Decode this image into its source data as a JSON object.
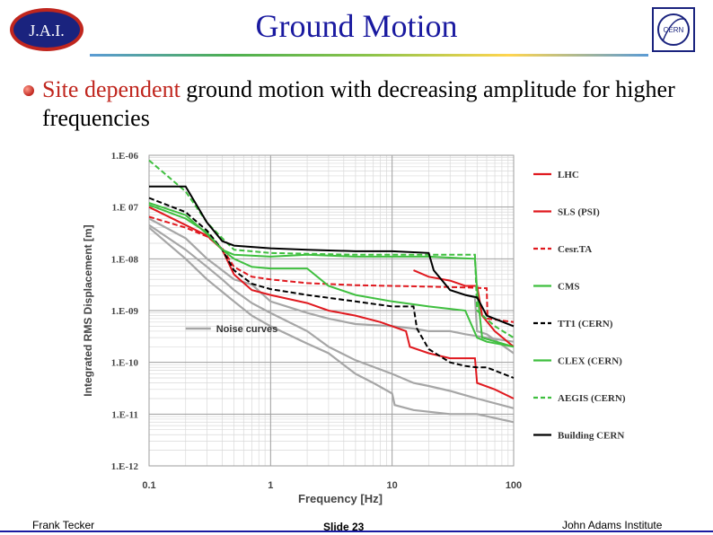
{
  "slide": {
    "title": "Ground Motion",
    "logo_left_text": "J.A.I.",
    "logo_right_text": "CERN",
    "bullet_part1": "Site dependent",
    "bullet_part2": " ground motion with decreasing amplitude for higher frequencies"
  },
  "footer": {
    "left": "Frank Tecker",
    "center": "Slide 23",
    "right": "John Adams Institute"
  },
  "colors": {
    "title": "#1a1aa0",
    "accent": "#c0261e"
  },
  "chart_data": {
    "type": "line",
    "xlabel": "Frequency [Hz]",
    "ylabel": "Integrated RMS Displacement [m]",
    "x_scale": "log",
    "y_scale": "log",
    "xlim": [
      0.1,
      100
    ],
    "ylim": [
      1e-12,
      1e-06
    ],
    "grid": true,
    "legend_position": "right",
    "xticks": [
      {
        "value": 0.1,
        "label": "0.1"
      },
      {
        "value": 1,
        "label": "1"
      },
      {
        "value": 10,
        "label": "10"
      },
      {
        "value": 100,
        "label": "100"
      }
    ],
    "yticks": [
      {
        "value": 1e-06,
        "label": "1.E-06"
      },
      {
        "value": 1e-07,
        "label": "1.E 07"
      },
      {
        "value": 1e-08,
        "label": "1.E-08"
      },
      {
        "value": 1e-09,
        "label": "1.E-09"
      },
      {
        "value": 1e-10,
        "label": "1.E-10"
      },
      {
        "value": 1e-11,
        "label": "1.E-11"
      },
      {
        "value": 1e-12,
        "label": "1.E-12"
      }
    ],
    "annotation": {
      "text": "Noise curves",
      "x": 0.2,
      "y": 4.5e-10
    },
    "series": [
      {
        "name": "LHC",
        "color": "#e0191f",
        "dash": "solid",
        "points": [
          [
            0.1,
            1e-07
          ],
          [
            0.2,
            4.5e-08
          ],
          [
            0.3,
            2.8e-08
          ],
          [
            0.4,
            1.5e-08
          ],
          [
            0.5,
            5e-09
          ],
          [
            0.7,
            2.5e-09
          ],
          [
            1,
            2e-09
          ],
          [
            2,
            1.4e-09
          ],
          [
            3,
            1e-09
          ],
          [
            5,
            8e-10
          ],
          [
            8,
            6e-10
          ],
          [
            10,
            5e-10
          ],
          [
            13,
            4e-10
          ],
          [
            14,
            2e-10
          ],
          [
            20,
            1.5e-10
          ],
          [
            30,
            1.2e-10
          ],
          [
            48,
            1.2e-10
          ],
          [
            50,
            4e-11
          ],
          [
            70,
            3e-11
          ],
          [
            100,
            2e-11
          ]
        ]
      },
      {
        "name": "SLS (PSI)",
        "color": "#e0191f",
        "dash": "solid",
        "points": [
          [
            15,
            6e-09
          ],
          [
            20,
            4.5e-09
          ],
          [
            30,
            3.8e-09
          ],
          [
            40,
            3e-09
          ],
          [
            50,
            3e-09
          ],
          [
            55,
            8e-10
          ],
          [
            70,
            4e-10
          ],
          [
            100,
            2e-10
          ]
        ]
      },
      {
        "name": "Cesr.TA",
        "color": "#e0191f",
        "dash": "dash",
        "points": [
          [
            0.1,
            6.5e-08
          ],
          [
            0.2,
            4e-08
          ],
          [
            0.3,
            2.7e-08
          ],
          [
            0.4,
            1.6e-08
          ],
          [
            0.5,
            7e-09
          ],
          [
            0.7,
            4.5e-09
          ],
          [
            1,
            4e-09
          ],
          [
            2,
            3.4e-09
          ],
          [
            5,
            3.1e-09
          ],
          [
            10,
            3e-09
          ],
          [
            20,
            2.9e-09
          ],
          [
            40,
            2.8e-09
          ],
          [
            60,
            2.7e-09
          ],
          [
            61,
            7e-10
          ],
          [
            100,
            6e-10
          ]
        ]
      },
      {
        "name": "CMS",
        "color": "#3fbf3f",
        "dash": "solid",
        "points": [
          [
            0.1,
            1.1e-07
          ],
          [
            0.2,
            6e-08
          ],
          [
            0.3,
            3.2e-08
          ],
          [
            0.4,
            1.5e-08
          ],
          [
            0.5,
            1e-08
          ],
          [
            0.7,
            7e-09
          ],
          [
            1,
            6.5e-09
          ],
          [
            2,
            6.5e-09
          ],
          [
            3,
            3e-09
          ],
          [
            5,
            2e-09
          ],
          [
            10,
            1.5e-09
          ],
          [
            20,
            1.2e-09
          ],
          [
            40,
            1e-09
          ],
          [
            50,
            3e-10
          ],
          [
            60,
            2.5e-10
          ],
          [
            100,
            2e-10
          ]
        ]
      },
      {
        "name": "TT1 (CERN)",
        "color": "#000000",
        "dash": "dash",
        "points": [
          [
            0.1,
            1.5e-07
          ],
          [
            0.2,
            8e-08
          ],
          [
            0.3,
            3.5e-08
          ],
          [
            0.4,
            1.5e-08
          ],
          [
            0.5,
            6e-09
          ],
          [
            0.7,
            3.3e-09
          ],
          [
            1,
            2.6e-09
          ],
          [
            2,
            2e-09
          ],
          [
            5,
            1.5e-09
          ],
          [
            10,
            1.2e-09
          ],
          [
            15,
            1.2e-09
          ],
          [
            16,
            4.5e-10
          ],
          [
            20,
            1.8e-10
          ],
          [
            30,
            1e-10
          ],
          [
            40,
            8.5e-11
          ],
          [
            50,
            8e-11
          ],
          [
            60,
            8e-11
          ],
          [
            100,
            5e-11
          ]
        ]
      },
      {
        "name": "CLEX (CERN)",
        "color": "#3fbf3f",
        "dash": "solid",
        "points": [
          [
            0.1,
            1.2e-07
          ],
          [
            0.2,
            7e-08
          ],
          [
            0.3,
            3e-08
          ],
          [
            0.4,
            1.5e-08
          ],
          [
            0.5,
            1.2e-08
          ],
          [
            1,
            1.1e-08
          ],
          [
            2,
            1.2e-08
          ],
          [
            5,
            1.1e-08
          ],
          [
            10,
            1.1e-08
          ],
          [
            20,
            1.1e-08
          ],
          [
            48,
            1e-08
          ],
          [
            50,
            2.5e-09
          ],
          [
            55,
            3e-10
          ],
          [
            100,
            2e-10
          ]
        ]
      },
      {
        "name": "AEGIS (CERN)",
        "color": "#3fbf3f",
        "dash": "dash",
        "points": [
          [
            0.1,
            8e-07
          ],
          [
            0.2,
            2e-07
          ],
          [
            0.3,
            5e-08
          ],
          [
            0.4,
            2.5e-08
          ],
          [
            0.5,
            1.5e-08
          ],
          [
            1,
            1.3e-08
          ],
          [
            5,
            1.2e-08
          ],
          [
            10,
            1.2e-08
          ],
          [
            20,
            1.2e-08
          ],
          [
            48,
            1.2e-08
          ],
          [
            50,
            1e-09
          ],
          [
            70,
            5e-10
          ],
          [
            100,
            3e-10
          ]
        ]
      },
      {
        "name": "Building CERN",
        "color": "#000000",
        "dash": "solid",
        "points": [
          [
            0.1,
            2.5e-07
          ],
          [
            0.2,
            2.5e-07
          ],
          [
            0.3,
            5e-08
          ],
          [
            0.4,
            2.2e-08
          ],
          [
            0.5,
            1.8e-08
          ],
          [
            1,
            1.6e-08
          ],
          [
            2,
            1.5e-08
          ],
          [
            5,
            1.4e-08
          ],
          [
            10,
            1.4e-08
          ],
          [
            20,
            1.3e-08
          ],
          [
            22,
            6e-09
          ],
          [
            30,
            2.5e-09
          ],
          [
            40,
            2e-09
          ],
          [
            50,
            1.8e-09
          ],
          [
            60,
            8e-10
          ],
          [
            100,
            5e-10
          ]
        ]
      }
    ],
    "noise_curves": {
      "color": "#a6a6a6",
      "curves": [
        [
          [
            0.1,
            6e-08
          ],
          [
            0.2,
            2.5e-08
          ],
          [
            0.3,
            1e-08
          ],
          [
            0.4,
            6e-09
          ],
          [
            0.5,
            4e-09
          ],
          [
            0.7,
            3.2e-09
          ],
          [
            1,
            1.5e-09
          ],
          [
            2,
            9e-10
          ],
          [
            3,
            7e-10
          ],
          [
            5,
            5.5e-10
          ],
          [
            10,
            5e-10
          ],
          [
            15,
            4.5e-10
          ],
          [
            20,
            4e-10
          ],
          [
            30,
            4e-10
          ],
          [
            40,
            3.5e-10
          ],
          [
            60,
            3e-10
          ],
          [
            100,
            2.5e-10
          ]
        ],
        [
          [
            0.1,
            4.5e-08
          ],
          [
            0.2,
            1.5e-08
          ],
          [
            0.3,
            7e-09
          ],
          [
            0.4,
            4e-09
          ],
          [
            0.5,
            2.5e-09
          ],
          [
            0.7,
            1.4e-09
          ],
          [
            1,
            9e-10
          ],
          [
            2,
            4e-10
          ],
          [
            3,
            2e-10
          ],
          [
            5,
            1.1e-10
          ],
          [
            10,
            6e-11
          ],
          [
            15,
            4e-11
          ],
          [
            20,
            3.5e-11
          ],
          [
            30,
            2.8e-11
          ],
          [
            50,
            2e-11
          ],
          [
            100,
            1.3e-11
          ]
        ],
        [
          [
            0.1,
            4e-08
          ],
          [
            0.2,
            1e-08
          ],
          [
            0.3,
            4e-09
          ],
          [
            0.5,
            1.5e-09
          ],
          [
            0.7,
            8e-10
          ],
          [
            1,
            5e-10
          ],
          [
            2,
            2.3e-10
          ],
          [
            3,
            1.5e-10
          ],
          [
            5,
            6e-11
          ],
          [
            7,
            4e-11
          ],
          [
            10,
            2.5e-11
          ],
          [
            10.5,
            1.5e-11
          ],
          [
            15,
            1.2e-11
          ],
          [
            30,
            1e-11
          ],
          [
            50,
            1e-11
          ],
          [
            100,
            7e-12
          ]
        ],
        [
          [
            40,
            2e-09
          ],
          [
            48,
            1.8e-09
          ],
          [
            50,
            4e-10
          ],
          [
            60,
            3.5e-10
          ],
          [
            100,
            1.5e-10
          ]
        ]
      ]
    }
  }
}
